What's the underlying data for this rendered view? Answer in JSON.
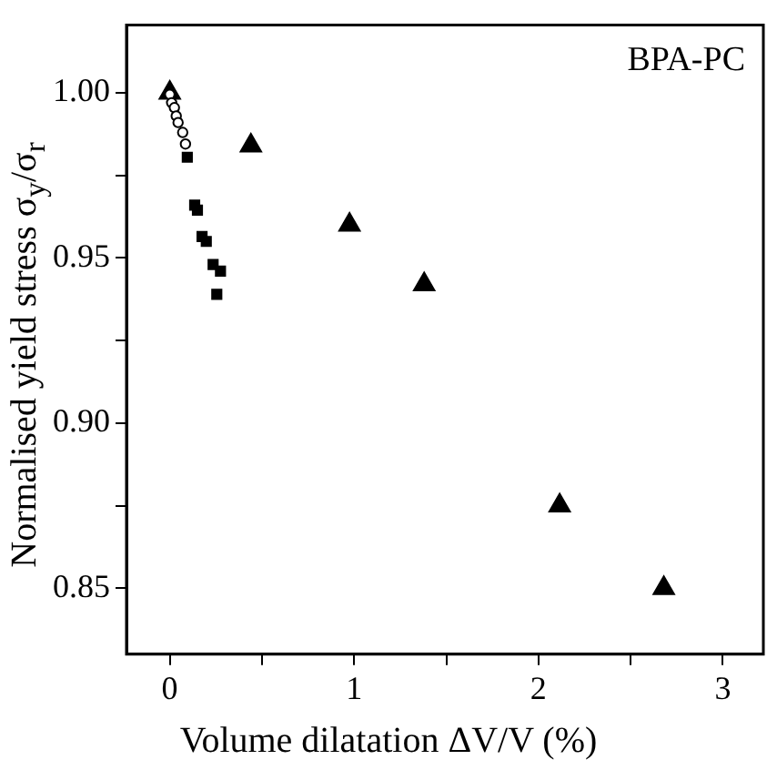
{
  "chart_data": {
    "type": "scatter",
    "xlabel": "Volume dilatation ΔV/V (%)",
    "ylabel": "Normalised yield stress σ$_{y}$/σ$_{r}$",
    "annotations": [
      "BPA-PC"
    ],
    "xlim": [
      -0.235,
      3.22
    ],
    "ylim": [
      0.83,
      1.0205
    ],
    "xticks": [
      0,
      {
        "value": 0.5,
        "label": null
      },
      1,
      {
        "value": 1.5,
        "label": null
      },
      2,
      {
        "value": 2.5,
        "label": null
      },
      3
    ],
    "yticks": [
      0.85,
      {
        "value": 0.875,
        "label": null
      },
      "0.90",
      {
        "value": 0.925,
        "label": null
      },
      0.95,
      {
        "value": 0.975,
        "label": null
      },
      "1.00"
    ],
    "grid": false,
    "legend": false,
    "series": [
      {
        "color": "#000000",
        "marker": "triangle",
        "x": [
          0,
          0.44,
          0.975,
          1.38,
          2.115,
          2.68
        ],
        "values": [
          1.0,
          0.984,
          0.96,
          0.942,
          0.875,
          0.85
        ]
      },
      {
        "color": "#000000",
        "marker": "circle",
        "x": [
          0,
          0.01,
          0.025,
          0.035,
          0.045,
          0.07,
          0.085
        ],
        "values": [
          0.9995,
          0.997,
          0.9955,
          0.993,
          0.991,
          0.988,
          0.9845
        ]
      },
      {
        "color": "#000000",
        "marker": "square",
        "x": [
          0.095,
          0.135,
          0.15,
          0.175,
          0.198,
          0.235,
          0.275,
          0.255
        ],
        "values": [
          0.9805,
          0.966,
          0.9645,
          0.9565,
          0.955,
          0.948,
          0.946,
          0.939
        ]
      }
    ]
  }
}
